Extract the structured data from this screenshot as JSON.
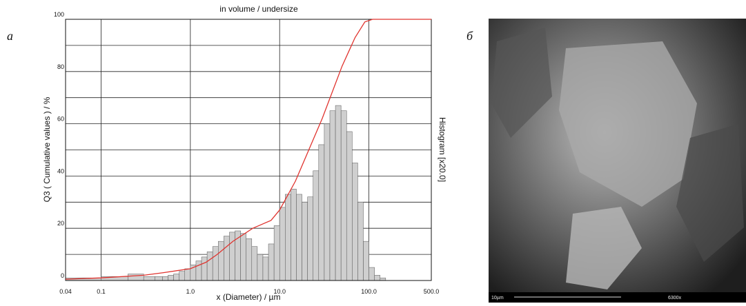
{
  "chart_data": {
    "type": "histogram",
    "title": "in volume / undersize",
    "xlabel": "x (Diameter) / µm",
    "ylabel": "Q3 ( Cumulative values ) / %",
    "y2label": "Histogram [x20.0]",
    "bins": [
      0.04,
      0.1,
      0.2,
      0.3,
      0.4,
      0.487,
      0.562,
      0.649,
      0.75,
      0.866,
      1,
      1.155,
      1.334,
      1.54,
      1.778,
      2.054,
      2.371,
      2.738,
      3.162,
      3.652,
      4.217,
      4.87,
      5.623,
      6.494,
      7.499,
      8.66,
      10,
      11.55,
      13.34,
      15.4,
      17.78,
      20.54,
      23.71,
      27.38,
      31.62,
      36.52,
      42.17,
      48.7,
      56.23,
      64.94,
      74.99,
      86.6,
      100,
      115.5,
      133.4,
      154
    ],
    "values": [
      1,
      1.5,
      2.5,
      1.5,
      1.5,
      1.5,
      2,
      2.5,
      3.5,
      4.5,
      6,
      7.5,
      9,
      11,
      13,
      15,
      17,
      18.5,
      19,
      18,
      16,
      13,
      10,
      9,
      14,
      21,
      28,
      33,
      35,
      33,
      30,
      32,
      42,
      52,
      60,
      65,
      67,
      65,
      57,
      45,
      30,
      15,
      5,
      2,
      1
    ],
    "color": "#cfcfcf",
    "line": {
      "color": "#e0332e",
      "x": [
        0.04,
        0.1,
        0.3,
        0.5,
        1,
        1.5,
        2,
        3,
        5,
        8,
        10,
        15,
        20,
        30,
        50,
        70,
        90,
        110,
        500
      ],
      "y": [
        0.5,
        1,
        2,
        3,
        4.5,
        7,
        10,
        15,
        20,
        23,
        27,
        38,
        48,
        62,
        82,
        93,
        99,
        100,
        100
      ]
    },
    "xlim": [
      0.04,
      500
    ],
    "log_x": true,
    "xticks": [
      0.04,
      0.1,
      {
        "value": 1,
        "label": "1.0"
      },
      {
        "value": 10,
        "label": "10.0"
      },
      {
        "value": 100,
        "label": "100.0"
      },
      {
        "value": 500,
        "label": "500.0"
      }
    ],
    "ylim": [
      0,
      100
    ],
    "yticks": [
      0,
      20,
      40,
      60,
      80,
      100
    ],
    "yminor": [
      10,
      30,
      50,
      70,
      90
    ],
    "grid": true
  },
  "panels": [
    "а",
    "б"
  ],
  "image": {
    "scale_label": "10µm",
    "magnification": "6300x"
  }
}
